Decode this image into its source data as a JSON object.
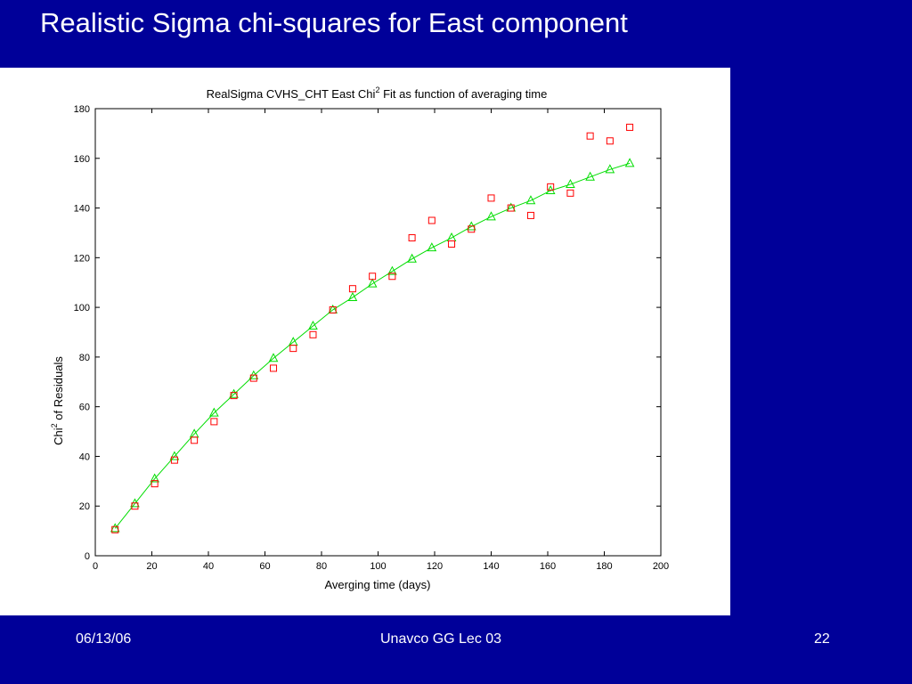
{
  "slide": {
    "title": "Realistic Sigma chi-squares for East component"
  },
  "footer": {
    "date": "06/13/06",
    "center": "Unavco GG Lec 03",
    "page": "22"
  },
  "colors": {
    "background": "#000099",
    "observed": "#ff0000",
    "fit": "#00dd00"
  },
  "chart_data": {
    "type": "scatter",
    "title_main": "RealSigma CVHS_CHT East Chi",
    "title_sup": "2",
    "title_rest": " Fit as function of averaging time",
    "xlabel": "Averging time (days)",
    "ylabel_main": "Chi",
    "ylabel_sup": "2",
    "ylabel_rest": " of Residuals",
    "xlim": [
      0,
      200
    ],
    "ylim": [
      0,
      180
    ],
    "xticks": [
      "0",
      "20",
      "40",
      "60",
      "80",
      "100",
      "120",
      "140",
      "160",
      "180",
      "200"
    ],
    "yticks": [
      "0",
      "20",
      "40",
      "60",
      "80",
      "100",
      "120",
      "140",
      "160",
      "180"
    ],
    "grid": false,
    "legend": "none",
    "series": [
      {
        "marker": "square",
        "style": "markers",
        "x": [
          7,
          14,
          21,
          28,
          35,
          42,
          49,
          56,
          63,
          70,
          77,
          84,
          91,
          98,
          105,
          112,
          119,
          126,
          133,
          140,
          147,
          154,
          161,
          168,
          175,
          182,
          189
        ],
        "y": [
          10.5,
          20,
          29,
          38.5,
          46.5,
          54,
          64.5,
          71.5,
          75.5,
          83.5,
          89,
          99,
          107.5,
          112.5,
          112.5,
          128,
          135,
          125.5,
          131.5,
          144,
          140,
          137,
          148.5,
          146,
          169,
          167,
          172.5
        ]
      },
      {
        "marker": "triangle",
        "style": "line+markers",
        "x": [
          7,
          14,
          21,
          28,
          35,
          42,
          49,
          56,
          63,
          70,
          77,
          84,
          91,
          98,
          105,
          112,
          119,
          126,
          133,
          140,
          147,
          154,
          161,
          168,
          175,
          182,
          189
        ],
        "y": [
          11,
          21,
          31,
          40,
          49,
          57.5,
          65,
          72.5,
          79.5,
          86,
          92.5,
          99,
          104,
          109.5,
          114.5,
          119.5,
          124,
          128,
          132.5,
          136.5,
          140,
          143,
          147,
          149.5,
          152.5,
          155.5,
          158
        ]
      }
    ]
  }
}
